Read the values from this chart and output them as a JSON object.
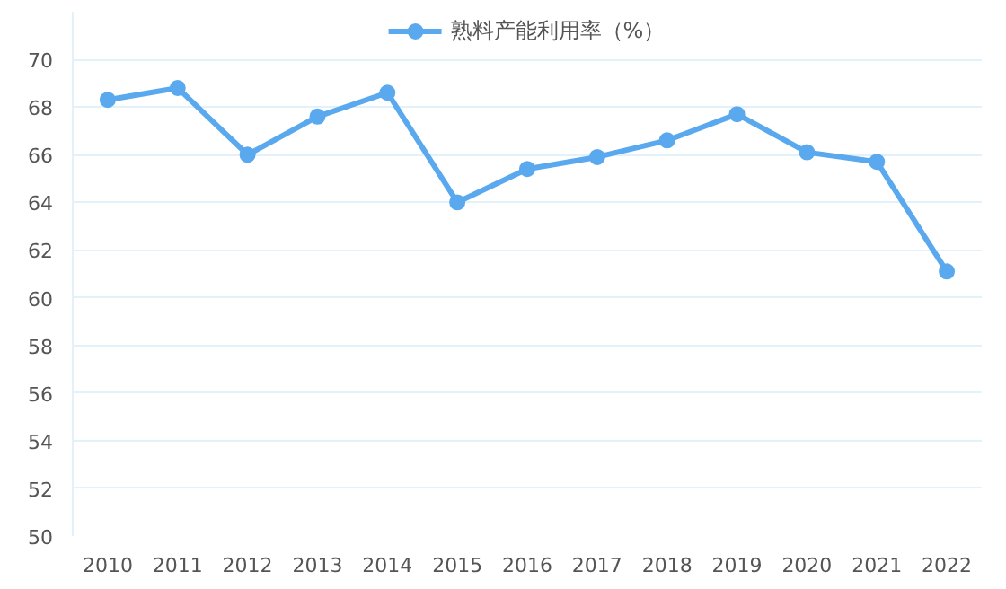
{
  "chart_data": {
    "type": "line",
    "categories": [
      "2010",
      "2011",
      "2012",
      "2013",
      "2014",
      "2015",
      "2016",
      "2017",
      "2018",
      "2019",
      "2020",
      "2021",
      "2022"
    ],
    "series": [
      {
        "name": "熟料产能利用率（%）",
        "color": "#5aa9ee",
        "values": [
          68.3,
          68.8,
          66.0,
          67.6,
          68.6,
          64.0,
          65.4,
          65.9,
          66.6,
          67.7,
          66.1,
          65.7,
          61.1
        ]
      }
    ],
    "ylim": [
      50,
      72
    ],
    "yticks": [
      50,
      52,
      54,
      56,
      58,
      60,
      62,
      64,
      66,
      68,
      70
    ],
    "grid": "y",
    "legend": "top",
    "marker": "circle",
    "line_style": "solid"
  }
}
